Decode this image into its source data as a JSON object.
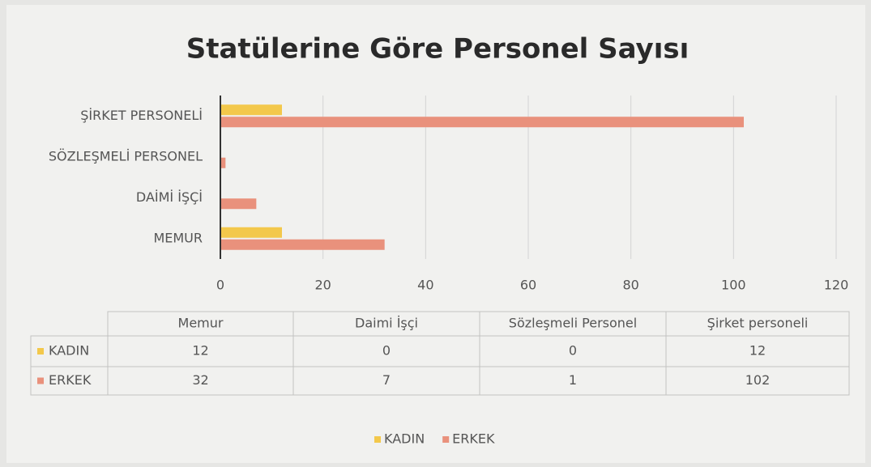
{
  "chart_data": {
    "type": "bar",
    "orientation": "horizontal",
    "title": "Statülerine Göre Personel Sayısı",
    "categories": [
      "MEMUR",
      "DAİMİ İŞÇİ",
      "SÖZLEŞMELİ PERSONEL",
      "ŞİRKET PERSONELİ"
    ],
    "table_headers": [
      "Memur",
      "Daimi İşçi",
      "Sözleşmeli Personel",
      "Şirket personeli"
    ],
    "series": [
      {
        "name": "KADIN",
        "color": "#f3c84b",
        "values": [
          12,
          0,
          0,
          12
        ]
      },
      {
        "name": "ERKEK",
        "color": "#e9917c",
        "values": [
          32,
          7,
          1,
          102
        ]
      }
    ],
    "xlim": [
      0,
      120
    ],
    "xticks": [
      0,
      20,
      40,
      60,
      80,
      100,
      120
    ],
    "grid": true,
    "legend": "bottom"
  }
}
